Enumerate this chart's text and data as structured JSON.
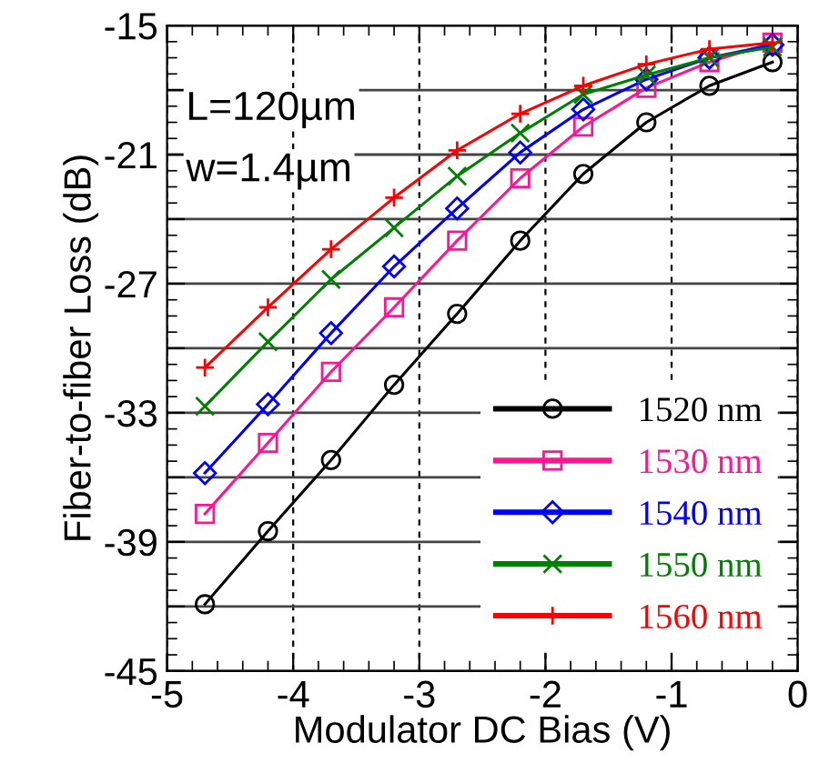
{
  "chart_data": {
    "type": "line",
    "xlabel": "Modulator DC Bias (V)",
    "ylabel": "Fiber-to-fiber Loss (dB)",
    "x": [
      -4.7,
      -4.2,
      -3.7,
      -3.2,
      -2.7,
      -2.2,
      -1.7,
      -1.2,
      -0.7,
      -0.2
    ],
    "series": [
      {
        "name": "1520 nm",
        "color": "#000000",
        "marker": "circle",
        "values": [
          -41.9,
          -38.5,
          -35.2,
          -31.7,
          -28.4,
          -25.0,
          -21.9,
          -19.5,
          -17.8,
          -16.7
        ]
      },
      {
        "name": "1530 nm",
        "color": "#ff1493",
        "marker": "square",
        "values": [
          -37.7,
          -34.4,
          -31.1,
          -28.1,
          -25.0,
          -22.1,
          -19.7,
          -17.9,
          -16.7,
          -15.8
        ]
      },
      {
        "name": "1540 nm",
        "color": "#0000ff",
        "marker": "diamond",
        "values": [
          -35.8,
          -32.6,
          -29.3,
          -26.2,
          -23.5,
          -20.9,
          -18.9,
          -17.5,
          -16.5,
          -15.9
        ]
      },
      {
        "name": "1550 nm",
        "color": "#008000",
        "marker": "x",
        "values": [
          -32.7,
          -29.7,
          -26.8,
          -24.4,
          -22.0,
          -20.0,
          -18.2,
          -17.3,
          -16.5,
          -16.0
        ]
      },
      {
        "name": "1560 nm",
        "color": "#ff0000",
        "marker": "plus",
        "values": [
          -30.9,
          -28.1,
          -25.4,
          -23.0,
          -20.8,
          -19.1,
          -17.8,
          -16.8,
          -16.1,
          -15.8
        ]
      }
    ],
    "xlim": [
      -5,
      0
    ],
    "xticks": [
      -5,
      -4,
      -3,
      -2,
      -1,
      0
    ],
    "ylim": [
      -45,
      -15
    ],
    "yticks": [
      -45,
      {
        "value": -42,
        "label": null
      },
      -39,
      {
        "value": -36,
        "label": null
      },
      -33,
      {
        "value": -30,
        "label": null
      },
      -27,
      {
        "value": -24,
        "label": null
      },
      -21,
      {
        "value": -18,
        "label": null
      },
      -15
    ],
    "grid": true,
    "legend": "bottom right",
    "line_style": "solid",
    "annotations": [
      "L=120µm",
      "w=1.4µm"
    ]
  }
}
